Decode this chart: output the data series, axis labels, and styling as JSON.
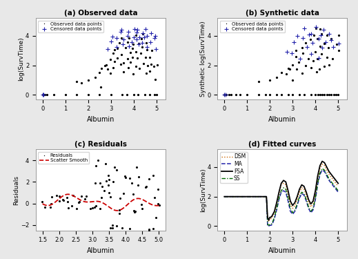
{
  "title_a": "(a) Observed data",
  "title_b": "(b) Synthetic data",
  "title_c": "(c) Residuals",
  "title_d": "(d) Fitted curves",
  "xlabel": "Albumin",
  "ylabel_a": "log(SurvTime)",
  "ylabel_b": "Synthetic log(SurvTime)",
  "ylabel_c": "Residuals",
  "ylabel_d": "log(SurvTime)",
  "obs_color": "#000000",
  "cens_color": "#2222aa",
  "smooth_color": "#cc0000",
  "DSM_color": "#cc6600",
  "MA_color": "#2222aa",
  "FSA_color": "#000000",
  "SS_color": "#006600",
  "background": "#e8e8e8",
  "panel_bg": "#ffffff",
  "fitted_x": [
    0.0,
    0.5,
    1.0,
    1.5,
    1.8,
    1.85,
    1.9,
    1.95,
    2.0,
    2.05,
    2.1,
    2.2,
    2.3,
    2.4,
    2.5,
    2.6,
    2.7,
    2.8,
    2.9,
    3.0,
    3.1,
    3.2,
    3.3,
    3.4,
    3.5,
    3.6,
    3.7,
    3.8,
    3.9,
    4.0,
    4.1,
    4.2,
    4.3,
    4.4,
    4.5,
    4.6,
    4.7,
    4.8,
    4.9,
    5.0
  ],
  "fitted_DSM": [
    2.0,
    2.0,
    2.0,
    2.0,
    2.0,
    2.0,
    0.6,
    0.3,
    0.5,
    0.5,
    0.6,
    0.9,
    1.5,
    2.2,
    2.8,
    2.9,
    2.8,
    2.2,
    1.5,
    1.2,
    1.4,
    1.8,
    2.3,
    2.6,
    2.5,
    2.1,
    1.6,
    1.3,
    1.5,
    2.2,
    3.2,
    3.9,
    4.2,
    4.1,
    3.8,
    3.5,
    3.3,
    3.1,
    2.9,
    2.7
  ],
  "fitted_MA": [
    2.0,
    2.0,
    2.0,
    2.0,
    2.0,
    2.0,
    0.0,
    0.0,
    0.05,
    0.05,
    0.1,
    0.5,
    1.1,
    1.8,
    2.3,
    2.4,
    2.3,
    1.7,
    1.0,
    0.8,
    1.0,
    1.4,
    1.9,
    2.2,
    2.1,
    1.7,
    1.2,
    0.9,
    1.1,
    1.8,
    2.8,
    3.5,
    3.8,
    3.7,
    3.4,
    3.1,
    2.9,
    2.7,
    2.5,
    2.3
  ],
  "fitted_FSA": [
    2.0,
    2.0,
    2.0,
    2.0,
    2.0,
    2.0,
    0.6,
    0.4,
    0.6,
    0.6,
    0.7,
    1.0,
    1.6,
    2.3,
    2.9,
    3.1,
    3.0,
    2.4,
    1.7,
    1.4,
    1.6,
    2.0,
    2.5,
    2.8,
    2.7,
    2.3,
    1.8,
    1.5,
    1.7,
    2.4,
    3.4,
    4.1,
    4.4,
    4.3,
    4.0,
    3.7,
    3.5,
    3.3,
    3.1,
    2.9
  ],
  "fitted_SS": [
    2.0,
    2.0,
    2.0,
    2.0,
    2.0,
    2.0,
    0.15,
    0.05,
    0.1,
    0.1,
    0.2,
    0.6,
    1.2,
    1.9,
    2.4,
    2.6,
    2.5,
    1.9,
    1.2,
    0.9,
    1.1,
    1.5,
    2.0,
    2.3,
    2.2,
    1.8,
    1.3,
    1.0,
    1.2,
    1.9,
    2.9,
    3.6,
    3.9,
    3.8,
    3.5,
    3.2,
    3.0,
    2.8,
    2.6,
    2.4
  ]
}
